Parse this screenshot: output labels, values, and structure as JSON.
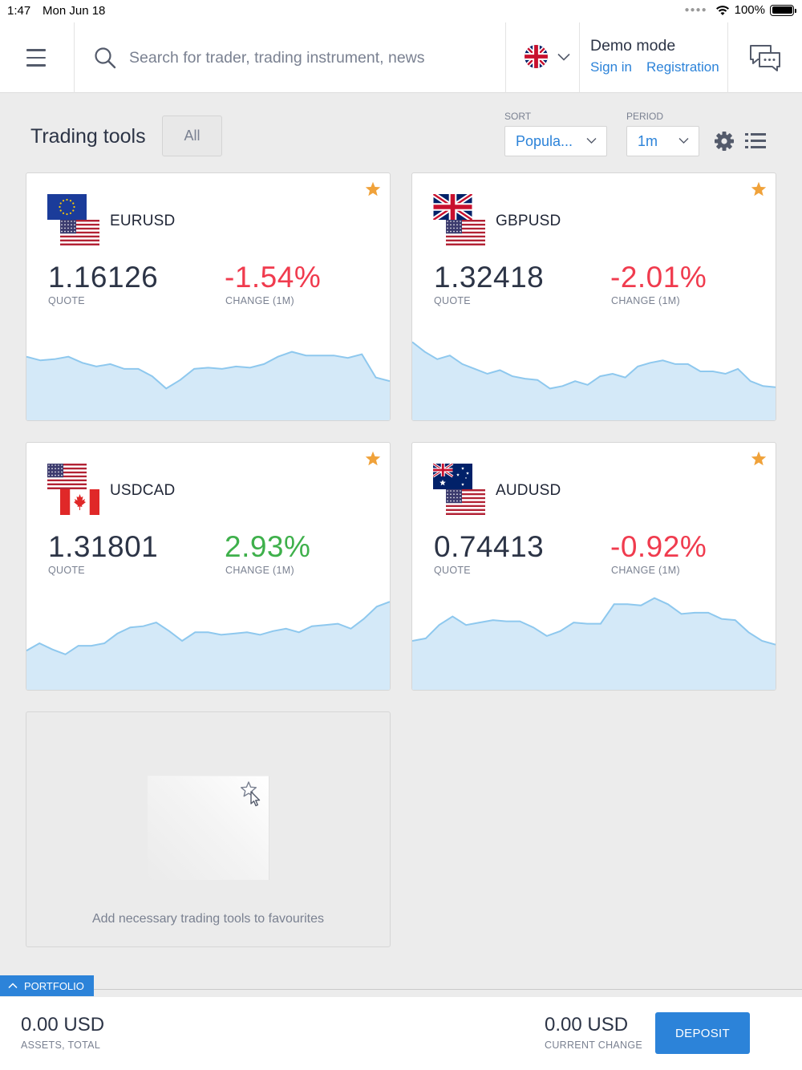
{
  "status_bar": {
    "time": "1:47",
    "date": "Mon Jun 18",
    "battery": "100%"
  },
  "header": {
    "search_placeholder": "Search for trader, trading instrument, news",
    "language_flag": "uk-flag-icon",
    "mode": "Demo mode",
    "sign_in": "Sign in",
    "registration": "Registration"
  },
  "toolbar": {
    "title": "Trading tools",
    "filter": "All",
    "sort_label": "SORT",
    "sort_value": "Popula...",
    "period_label": "PERIOD",
    "period_value": "1m"
  },
  "colors": {
    "accent": "#2c83d9",
    "negative": "#f03b4e",
    "positive": "#3eb04b",
    "star": "#f0a23a",
    "chart_fill": "#d4e9f8",
    "chart_line": "#8ec8ee"
  },
  "instruments": [
    {
      "symbol": "EURUSD",
      "quote": "1.16126",
      "quote_label": "QUOTE",
      "change": "-1.54%",
      "change_label": "CHANGE (1M)",
      "direction": "down",
      "flags": [
        "eu",
        "us"
      ],
      "spark": [
        52,
        49,
        50,
        52,
        47,
        44,
        46,
        42,
        42,
        36,
        26,
        33,
        42,
        43,
        42,
        44,
        43,
        46,
        52,
        56,
        53,
        53,
        53,
        51,
        54,
        35,
        32
      ]
    },
    {
      "symbol": "GBPUSD",
      "quote": "1.32418",
      "quote_label": "QUOTE",
      "change": "-2.01%",
      "change_label": "CHANGE (1M)",
      "direction": "down",
      "flags": [
        "gb",
        "us"
      ],
      "spark": [
        64,
        56,
        50,
        53,
        46,
        42,
        38,
        41,
        36,
        34,
        33,
        26,
        28,
        32,
        29,
        36,
        38,
        35,
        44,
        47,
        49,
        46,
        46,
        40,
        40,
        38,
        42,
        32,
        28,
        27
      ]
    },
    {
      "symbol": "USDCAD",
      "quote": "1.31801",
      "quote_label": "QUOTE",
      "change": "2.93%",
      "change_label": "CHANGE (1M)",
      "direction": "up",
      "flags": [
        "us",
        "ca"
      ],
      "spark": [
        32,
        38,
        33,
        29,
        36,
        36,
        38,
        46,
        51,
        52,
        55,
        48,
        40,
        47,
        47,
        45,
        46,
        47,
        45,
        48,
        50,
        47,
        52,
        53,
        54,
        50,
        58,
        68,
        72
      ]
    },
    {
      "symbol": "AUDUSD",
      "quote": "0.74413",
      "quote_label": "QUOTE",
      "change": "-0.92%",
      "change_label": "CHANGE (1M)",
      "direction": "down",
      "flags": [
        "au",
        "us"
      ],
      "spark": [
        40,
        42,
        53,
        60,
        53,
        55,
        57,
        56,
        56,
        51,
        44,
        48,
        55,
        54,
        54,
        70,
        70,
        69,
        75,
        70,
        62,
        63,
        63,
        58,
        57,
        47,
        40,
        37
      ]
    }
  ],
  "favourites_hint": "Add necessary trading tools to favourites",
  "portfolio": {
    "tab_label": "PORTFOLIO",
    "assets_value": "0.00 USD",
    "assets_label": "ASSETS, TOTAL",
    "change_value": "0.00 USD",
    "change_label": "CURRENT CHANGE",
    "deposit_label": "DEPOSIT"
  }
}
